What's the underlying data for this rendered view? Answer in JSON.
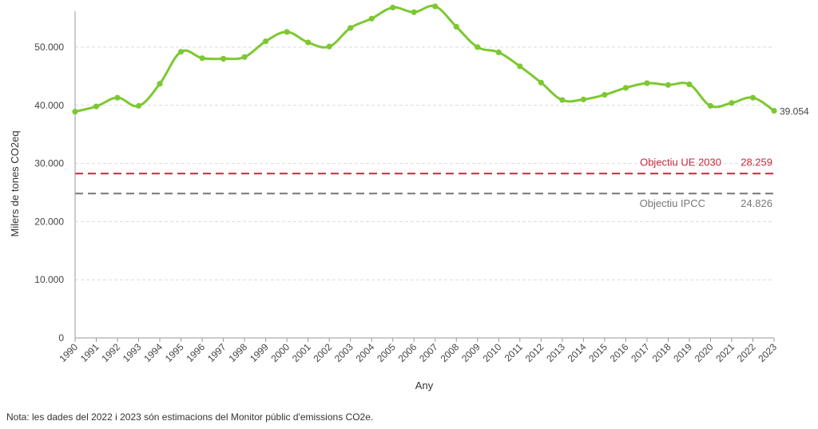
{
  "chart_data": {
    "type": "line",
    "xlabel": "Any",
    "ylabel": "Milers de tones CO2eq",
    "ylim": [
      0,
      57000
    ],
    "yticks": [
      0,
      10000,
      20000,
      30000,
      40000,
      50000
    ],
    "ytick_labels": [
      "0",
      "10.000",
      "20.000",
      "30.000",
      "40.000",
      "50.000"
    ],
    "grid": "horizontal dashed",
    "x": [
      "1990",
      "1991",
      "1992",
      "1993",
      "1994",
      "1995",
      "1996",
      "1997",
      "1998",
      "1999",
      "2000",
      "2001",
      "2002",
      "2003",
      "2004",
      "2005",
      "2006",
      "2007",
      "2008",
      "2009",
      "2010",
      "2011",
      "2012",
      "2013",
      "2014",
      "2015",
      "2016",
      "2017",
      "2018",
      "2019",
      "2020",
      "2021",
      "2022",
      "2023"
    ],
    "series": [
      {
        "color": "#7dc832",
        "values": [
          38900,
          39800,
          41300,
          39900,
          43700,
          49200,
          48100,
          48000,
          48300,
          51000,
          52600,
          50800,
          50100,
          53300,
          54900,
          56800,
          56000,
          57000,
          53500,
          50000,
          49100,
          46700,
          43900,
          40900,
          41000,
          41800,
          43000,
          43800,
          43500,
          43600,
          39900,
          40400,
          41300,
          39054
        ],
        "end_label": "39.054"
      }
    ],
    "reference_lines": [
      {
        "name": "Objectiu UE 2030",
        "value": 28259,
        "value_label": "28.259",
        "color": "#c8283c"
      },
      {
        "name": "Objectiu IPCC",
        "value": 24826,
        "value_label": "24.826",
        "color": "#777777"
      }
    ]
  },
  "note": "Nota: les dades del 2022 i 2023 són estimacions del Monitor públic d'emissions CO2e."
}
